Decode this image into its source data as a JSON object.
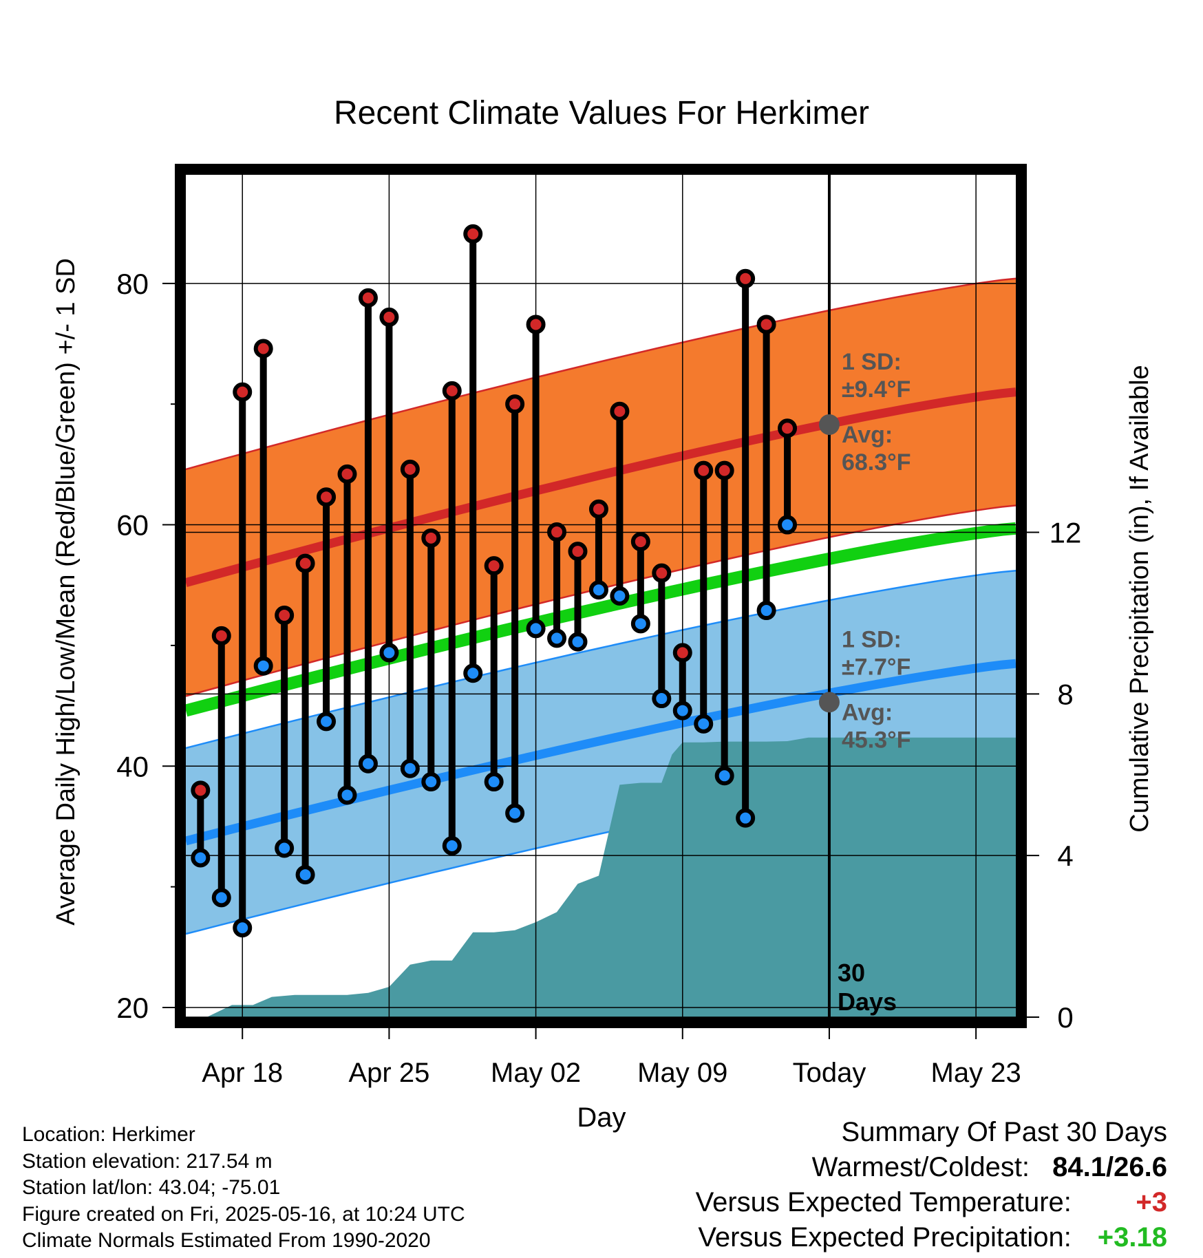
{
  "chart_data": {
    "type": "line",
    "title": "Recent Climate Values For Herkimer",
    "xlabel": "Day",
    "ylabel": "Average Daily High/Low/Mean (Red/Blue/Green) +/- 1 SD",
    "y2label": "Cumulative Precipitation (in), If Available",
    "ylim": [
      19.2,
      89
    ],
    "y2lim": [
      0,
      20.85
    ],
    "y_ticks": [
      20,
      40,
      60,
      80
    ],
    "y2_ticks": [
      0,
      4,
      8,
      12
    ],
    "x_tick_labels": [
      "Apr 18",
      "Apr 25",
      "May 02",
      "May 09",
      "Today",
      "May 23"
    ],
    "x_tick_days": [
      2,
      9,
      16,
      23,
      30,
      37
    ],
    "xlim": [
      -0.7,
      38.9
    ],
    "today_label": "30 Days",
    "grid": true,
    "normals": {
      "high_mean_range": [
        55.2,
        71.0
      ],
      "high_sd": 9.4,
      "low_mean_range": [
        33.8,
        48.5
      ],
      "low_sd": 7.7,
      "mean_range": [
        44.6,
        59.7
      ],
      "colors": {
        "high_band": "#f47a2d",
        "high_line": "#d22828",
        "low_band": "#86c2e7",
        "low_line": "#1e8cf8",
        "mean_line": "#11d011",
        "precip": "#4a9aa2"
      }
    },
    "annotations": {
      "high_sd": "1 SD:",
      "high_sd_val": "±9.4°F",
      "high_avg": "Avg:",
      "high_avg_val": "68.3°F",
      "low_sd": "1 SD:",
      "low_sd_val": "±7.7°F",
      "low_avg": "Avg:",
      "low_avg_val": "45.3°F",
      "today_high_avg": 68.3,
      "today_low_avg": 45.3
    },
    "days": [
      0,
      1,
      2,
      3,
      4,
      5,
      6,
      7,
      8,
      9,
      10,
      11,
      12,
      13,
      14,
      15,
      16,
      17,
      18,
      19,
      20,
      21,
      22,
      23,
      24,
      25,
      26,
      27,
      28
    ],
    "highs": [
      38.0,
      50.8,
      71.0,
      74.6,
      52.5,
      56.8,
      62.3,
      64.2,
      78.8,
      77.2,
      64.6,
      58.9,
      71.1,
      84.1,
      56.6,
      70.0,
      76.6,
      59.4,
      57.8,
      61.3,
      69.4,
      58.6,
      56.0,
      49.4,
      64.5,
      64.5,
      80.4,
      76.6,
      68.0
    ],
    "lows": [
      32.4,
      29.1,
      26.6,
      48.3,
      33.2,
      31.0,
      43.7,
      37.6,
      40.2,
      49.4,
      39.8,
      38.7,
      33.4,
      47.7,
      38.7,
      36.1,
      51.4,
      50.6,
      50.3,
      54.6,
      54.1,
      51.8,
      45.6,
      44.6,
      43.5,
      39.2,
      35.7,
      52.9,
      60.0
    ],
    "precip_x": [
      0.3,
      1.5,
      2.5,
      3.4,
      4.5,
      5.0,
      6.0,
      7.0,
      8.0,
      9.0,
      10.0,
      11.0,
      12.0,
      13.0,
      14.0,
      15.0,
      16.0,
      17.0,
      18.0,
      19.0,
      20.0,
      21.0,
      22.0,
      22.5,
      23.0,
      24.0,
      25.0,
      26.0,
      27.0,
      28.0,
      29.0,
      30.0,
      38.9
    ],
    "precip_y": [
      0,
      0.3,
      0.3,
      0.5,
      0.55,
      0.55,
      0.55,
      0.55,
      0.6,
      0.75,
      1.3,
      1.4,
      1.4,
      2.1,
      2.1,
      2.15,
      2.35,
      2.6,
      3.3,
      3.5,
      5.75,
      5.8,
      5.8,
      6.5,
      6.8,
      6.8,
      6.82,
      6.82,
      6.82,
      6.83,
      6.92,
      6.92,
      6.92
    ]
  },
  "footer": {
    "location": "Location: Herkimer",
    "elevation": "Station elevation: 217.54 m",
    "latlon": "Station lat/lon: 43.04; -75.01",
    "created": "Figure created on Fri, 2025-05-16, at 10:24 UTC",
    "normals": "Climate Normals Estimated From 1990-2020"
  },
  "summary": {
    "title": "Summary Of Past 30 Days",
    "warm_label": "Warmest/Coldest:",
    "warm_value": "84.1/26.6",
    "temp_label": "Versus Expected Temperature:",
    "temp_value": "+3",
    "temp_color": "#d22828",
    "precip_label": "Versus Expected Precipitation:",
    "precip_value": "+3.18",
    "precip_color": "#22bb22"
  }
}
